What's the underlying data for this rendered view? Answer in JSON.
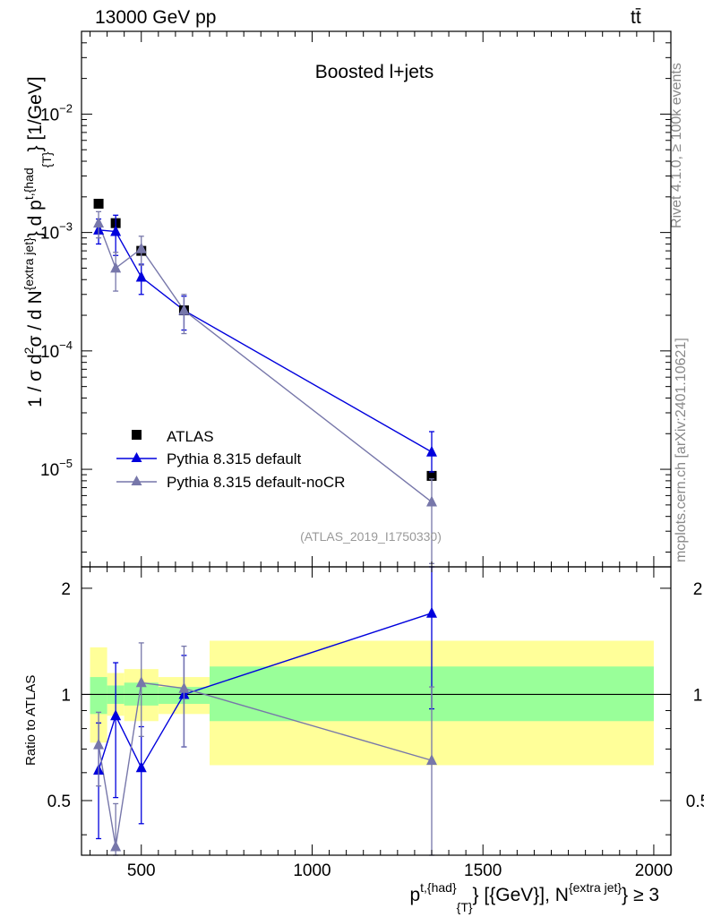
{
  "header": {
    "energy_label": "13000 GeV pp",
    "process_label": "tt̄"
  },
  "side_labels": {
    "rivet": "Rivet 4.1.0, ≥ 100k events",
    "mcplots": "mcplots.cern.ch [arXiv:2401.10621]"
  },
  "chart_data": {
    "type": "scatter",
    "title": "Boosted l+jets",
    "analysis_id": "(ATLAS_2019_I1750330)",
    "ylabel": "1 / σ d²σ / d N^{extra jet} d p^{t,{had}}_{T} [1/GeV]",
    "ylabel_parts": {
      "a": "1 / σ d",
      "a_sup": "2",
      "b": "σ / d N",
      "b_sup": "{extra jet}",
      "c": "} d p",
      "c_sup": "t,{had",
      "c_sub": "{T}",
      "d": "} [1/GeV]"
    },
    "xlabel": "p^{t,{had}}_{T} [{GeV}], N^{extra jet} ≥ 3",
    "xlabel_parts": {
      "a": "p",
      "a_sup": "t,{had}",
      "a_sub": "{T}",
      "b": "} [{GeV}], N",
      "b_sup": "{extra jet}",
      "c": "} ≥ 3"
    },
    "xlim": [
      325,
      2050
    ],
    "ylim": [
      1.5e-06,
      0.05
    ],
    "x_ticks": [
      500,
      1000,
      1500,
      2000
    ],
    "x_tick_labels": [
      "500",
      "1000",
      "1500",
      "2000"
    ],
    "y_ticks": [
      1e-05,
      0.0001,
      0.001,
      0.01
    ],
    "y_tick_labels": [
      {
        "base": "10",
        "exp": "−5"
      },
      {
        "base": "10",
        "exp": "−4"
      },
      {
        "base": "10",
        "exp": "−3"
      },
      {
        "base": "10",
        "exp": "−2"
      }
    ],
    "x_bins": [
      {
        "lo": 350,
        "hi": 400
      },
      {
        "lo": 400,
        "hi": 450
      },
      {
        "lo": 450,
        "hi": 550
      },
      {
        "lo": 550,
        "hi": 700
      },
      {
        "lo": 700,
        "hi": 2000
      }
    ],
    "x_centers": [
      375,
      425,
      500,
      625,
      1350
    ],
    "series": [
      {
        "name": "ATLAS",
        "color": "#000000",
        "marker": "square",
        "line": false,
        "values": [
          0.00175,
          0.0012,
          0.0007,
          0.00022,
          8.8e-06
        ]
      },
      {
        "name": "Pythia 8.315 default",
        "color": "#0000dd",
        "marker": "triangle",
        "line": true,
        "values": [
          0.00105,
          0.00102,
          0.00042,
          0.00022,
          1.4e-05
        ],
        "err_low": [
          0.00025,
          0.00038,
          0.00012,
          7e-05,
          4.5e-06
        ],
        "err_high": [
          0.00025,
          0.00038,
          0.00012,
          7e-05,
          6.8e-06
        ]
      },
      {
        "name": "Pythia 8.315 default-noCR",
        "color": "#7777aa",
        "marker": "triangle",
        "line": true,
        "values": [
          0.0012,
          0.0005,
          0.00073,
          0.00022,
          5.3e-06
        ],
        "err_low": [
          0.0003,
          0.00018,
          0.0002,
          8e-05,
          3.7e-06
        ],
        "err_high": [
          0.0003,
          0.00018,
          0.0002,
          8e-05,
          3e-06
        ]
      }
    ],
    "ratio": {
      "ylabel": "Ratio to ATLAS",
      "ylim": [
        0.35,
        2.3
      ],
      "y_ticks": [
        0.5,
        1,
        2
      ],
      "y_tick_labels": [
        "0.5",
        "1",
        "2"
      ],
      "band_inner": [
        [
          0.88,
          1.12
        ],
        [
          0.94,
          1.06
        ],
        [
          0.93,
          1.08
        ],
        [
          0.94,
          1.05
        ],
        [
          0.84,
          1.2
        ]
      ],
      "band_outer": [
        [
          0.73,
          1.36
        ],
        [
          0.87,
          1.15
        ],
        [
          0.84,
          1.18
        ],
        [
          0.88,
          1.12
        ],
        [
          0.63,
          1.42
        ]
      ],
      "band_inner_color": "#99ff99",
      "band_outer_color": "#ffff99",
      "series": [
        {
          "name": "Pythia 8.315 default",
          "color": "#0000dd",
          "values": [
            0.61,
            0.87,
            0.62,
            1.0,
            1.7
          ],
          "err_low": [
            0.22,
            0.36,
            0.19,
            0.29,
            0.79
          ],
          "err_high": [
            0.22,
            0.36,
            0.19,
            0.29,
            0.79
          ]
        },
        {
          "name": "Pythia 8.315 default-noCR",
          "color": "#7777aa",
          "values": [
            0.72,
            0.37,
            1.08,
            1.04,
            0.65
          ],
          "err_low": [
            0.17,
            0.12,
            0.32,
            0.33,
            0.4
          ],
          "err_high": [
            0.17,
            0.12,
            0.32,
            0.33,
            0.4
          ]
        }
      ]
    }
  }
}
